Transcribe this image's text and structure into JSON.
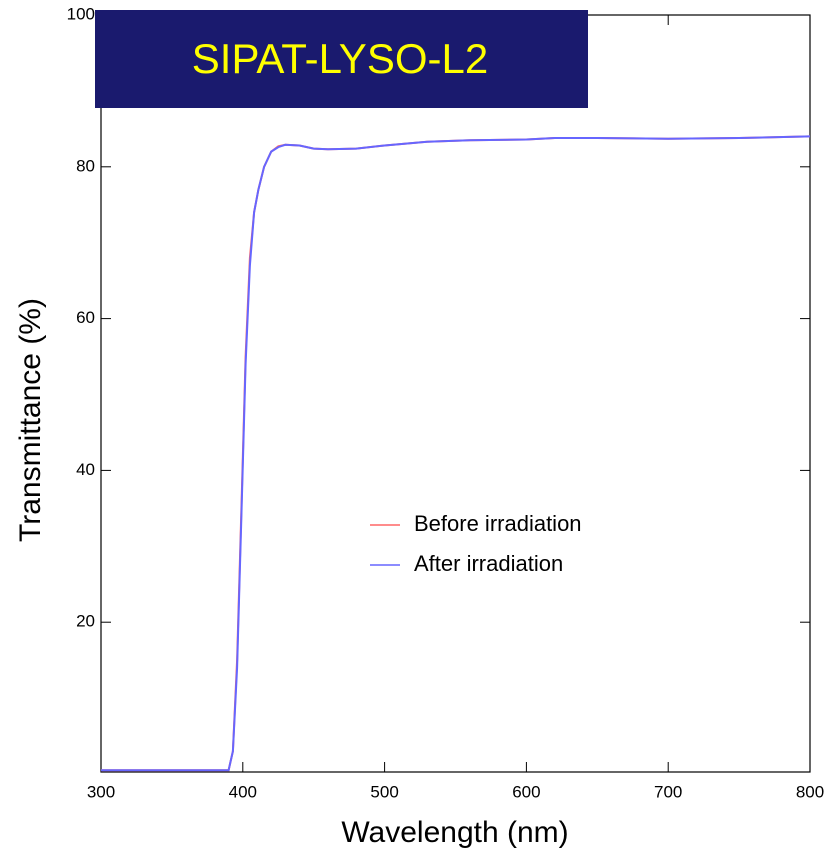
{
  "chart_data": {
    "type": "line",
    "title": "SIPAT-LYSO-L2",
    "x_label": "Wavelength (nm)",
    "y_label": "Transmittance (%)",
    "x": [
      300,
      390,
      393,
      396,
      399,
      402,
      405,
      408,
      411,
      415,
      420,
      425,
      430,
      440,
      450,
      460,
      480,
      500,
      530,
      560,
      600,
      620,
      650,
      700,
      750,
      800
    ],
    "series": [
      {
        "name": "Before irradiation",
        "color": "#ff6666",
        "values": [
          0.5,
          0.5,
          3,
          15,
          35,
          55,
          68,
          74,
          77,
          80,
          82,
          82.7,
          82.9,
          82.8,
          82.4,
          82.3,
          82.4,
          82.8,
          83.3,
          83.5,
          83.6,
          83.8,
          83.8,
          83.7,
          83.8,
          84
        ]
      },
      {
        "name": "After irradiation",
        "color": "#6666ff",
        "values": [
          0.5,
          0.5,
          3,
          14,
          34,
          54,
          67,
          74,
          77,
          80,
          82,
          82.6,
          82.9,
          82.8,
          82.4,
          82.3,
          82.4,
          82.8,
          83.3,
          83.5,
          83.6,
          83.8,
          83.8,
          83.7,
          83.8,
          84
        ]
      }
    ],
    "xlim": [
      300,
      800
    ],
    "ylim": [
      0,
      100
    ],
    "xticks": [
      300,
      400,
      500,
      600,
      700,
      800
    ],
    "yticks": [
      20,
      40,
      60,
      80,
      100
    ]
  }
}
